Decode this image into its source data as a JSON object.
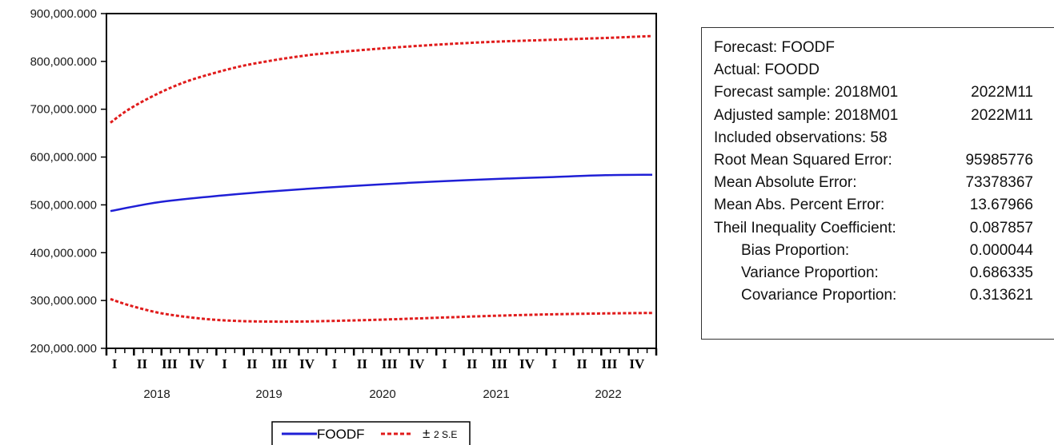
{
  "chart_data": {
    "type": "line",
    "title": "",
    "xlabel": "",
    "ylabel": "",
    "ylim": [
      200000000,
      900000000
    ],
    "y_ticks": [
      {
        "value": 200000000,
        "label": "200,000.000"
      },
      {
        "value": 300000000,
        "label": "300,000.000"
      },
      {
        "value": 400000000,
        "label": "400,000.000"
      },
      {
        "value": 500000000,
        "label": "500,000.000"
      },
      {
        "value": 600000000,
        "label": "600,000.000"
      },
      {
        "value": 700000000,
        "label": "700,000.000"
      },
      {
        "value": 800000000,
        "label": "800,000.000"
      },
      {
        "value": 900000000,
        "label": "900,000.000"
      }
    ],
    "x_start": "2018M01",
    "x_end": "2022M11",
    "n_obs": 58,
    "quarter_labels": [
      "I",
      "II",
      "III",
      "IV",
      "I",
      "II",
      "III",
      "IV",
      "I",
      "II",
      "III",
      "IV",
      "I",
      "II",
      "III",
      "IV",
      "I",
      "II",
      "III",
      "IV"
    ],
    "year_labels": [
      "2018",
      "2019",
      "2020",
      "2021",
      "2022"
    ],
    "grid": false,
    "legend_position": "bottom",
    "series": [
      {
        "name": "FOODF",
        "style": "solid",
        "color": "#1f1fd6",
        "x": [
          "2018M01",
          "2018M06",
          "2018M12",
          "2019M06",
          "2019M12",
          "2020M06",
          "2020M12",
          "2021M06",
          "2021M12",
          "2022M06",
          "2022M11"
        ],
        "y": [
          487000000,
          505000000,
          518000000,
          528000000,
          536000000,
          543000000,
          549000000,
          554000000,
          558000000,
          562000000,
          563000000
        ]
      },
      {
        "name": "± 2 S.E",
        "style": "dashed",
        "color": "#e01b1b",
        "x": [
          "2018M01",
          "2018M03",
          "2018M06",
          "2018M09",
          "2018M12",
          "2019M03",
          "2019M06",
          "2019M09",
          "2019M12",
          "2020M06",
          "2020M12",
          "2021M06",
          "2021M12",
          "2022M06",
          "2022M11"
        ],
        "y": [
          672000000,
          700000000,
          732000000,
          757000000,
          775000000,
          790000000,
          801000000,
          810000000,
          817000000,
          827000000,
          835000000,
          841000000,
          845000000,
          849000000,
          853000000
        ]
      },
      {
        "name": "± 2 S.E",
        "style": "dashed",
        "color": "#e01b1b",
        "x": [
          "2018M01",
          "2018M03",
          "2018M06",
          "2018M09",
          "2018M12",
          "2019M03",
          "2019M06",
          "2019M09",
          "2019M12",
          "2020M06",
          "2020M12",
          "2021M06",
          "2021M12",
          "2022M06",
          "2022M11"
        ],
        "y": [
          303000000,
          290000000,
          275000000,
          266000000,
          260000000,
          257000000,
          256000000,
          256000000,
          257000000,
          260000000,
          264000000,
          268000000,
          271000000,
          273000000,
          274000000
        ]
      }
    ]
  },
  "legend": {
    "foodf_label": "FOODF",
    "se_label": "2 S.E",
    "se_symbol": "±"
  },
  "stats": {
    "forecast": "Forecast: FOODF",
    "actual": "Actual: FOODD",
    "forecast_sample_label": "Forecast sample: 2018M01",
    "forecast_sample_end": "2022M11",
    "adjusted_sample_label": "Adjusted sample: 2018M01",
    "adjusted_sample_end": "2022M11",
    "included_obs": "Included observations: 58",
    "rmse_label": "Root Mean Squared Error:",
    "rmse_value": "95985776",
    "mae_label": "Mean Absolute Error:",
    "mae_value": "73378367",
    "mape_label": "Mean Abs. Percent Error:",
    "mape_value": "13.67966",
    "theil_label": "Theil Inequality Coefficient:",
    "theil_value": "0.087857",
    "bias_label": "Bias Proportion:",
    "bias_value": "0.000044",
    "variance_label": "Variance Proportion:",
    "variance_value": "0.686335",
    "covariance_label": "Covariance Proportion:",
    "covariance_value": "0.313621"
  }
}
